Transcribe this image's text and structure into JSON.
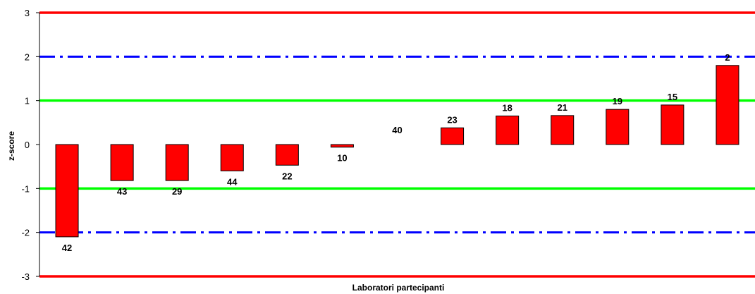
{
  "chart_data": {
    "type": "bar",
    "xlabel": "Laboratori partecipanti",
    "ylabel": "z-score",
    "ylim": [
      -3,
      3
    ],
    "yticks": [
      "3",
      "2",
      "1",
      "0",
      "-1",
      "-2",
      "-3"
    ],
    "grid": false,
    "categories": [
      "42",
      "43",
      "29",
      "44",
      "22",
      "10",
      "40",
      "23",
      "18",
      "21",
      "19",
      "15",
      "2"
    ],
    "values": [
      -2.1,
      -0.82,
      -0.82,
      -0.6,
      -0.47,
      -0.06,
      0.0,
      0.38,
      0.65,
      0.66,
      0.8,
      0.9,
      1.8
    ],
    "reference_lines": [
      {
        "value": 3,
        "color": "#ff0000",
        "style": "solid"
      },
      {
        "value": -3,
        "color": "#ff0000",
        "style": "solid"
      },
      {
        "value": 2,
        "color": "#0000ff",
        "style": "dash-dot"
      },
      {
        "value": -2,
        "color": "#0000ff",
        "style": "dash-dot"
      },
      {
        "value": 1,
        "color": "#00ff00",
        "style": "solid"
      },
      {
        "value": -1,
        "color": "#00ff00",
        "style": "solid"
      }
    ],
    "bar_color": "#ff0000"
  }
}
